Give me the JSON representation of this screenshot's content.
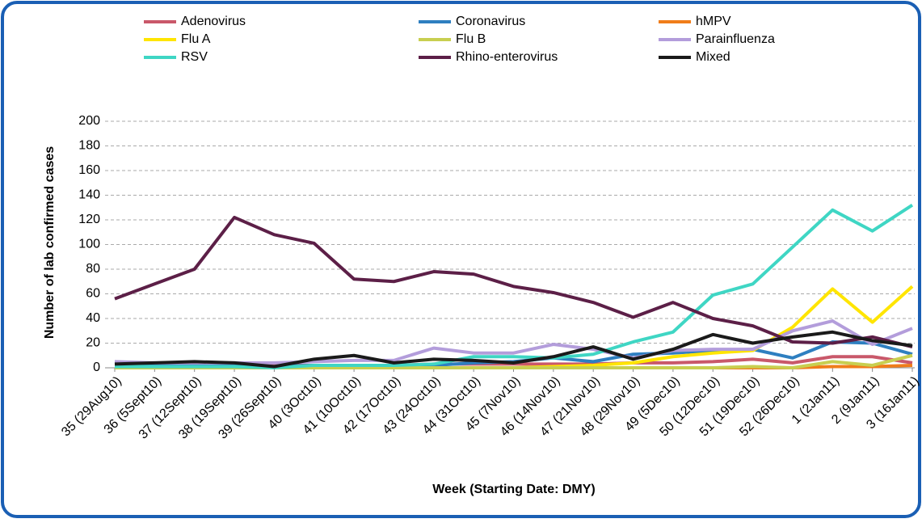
{
  "chart_data": {
    "type": "line",
    "y_label": "Number of lab confirmed cases",
    "x_label": "Week (Starting Date: DMY)",
    "categories": [
      "35 (29Aug10)",
      "36 (5Sept10)",
      "37 (12Sept10)",
      "38 (19Sept10)",
      "39 (26Sept10)",
      "40 (3Oct10)",
      "41 (10Oct10)",
      "42 (17Oct10)",
      "43 (24Oct10)",
      "44 (31Oct10)",
      "45 (7Nov10)",
      "46 (14Nov10)",
      "47 (21Nov10)",
      "48 (29Nov10)",
      "49 (5Dec10)",
      "50 (12Dec10)",
      "51 (19Dec10)",
      "52 (26Dec10)",
      "1 (2Jan11)",
      "2 (9Jan11)",
      "3 (16Jan11)"
    ],
    "ylim": [
      0,
      200
    ],
    "yticks": [
      0,
      20,
      40,
      60,
      80,
      100,
      120,
      140,
      160,
      180,
      200
    ],
    "grid": true,
    "legend": "top",
    "series": [
      {
        "name": "Adenovirus",
        "color": "#c9586a",
        "values": [
          3,
          3,
          3,
          3,
          2,
          2,
          2,
          2,
          3,
          3,
          3,
          3,
          3,
          4,
          4,
          5,
          7,
          4,
          9,
          9,
          4
        ]
      },
      {
        "name": "Coronavirus",
        "color": "#2e7fc0",
        "values": [
          2,
          2,
          2,
          2,
          1,
          2,
          2,
          2,
          2,
          4,
          5,
          8,
          5,
          11,
          12,
          14,
          15,
          8,
          21,
          20,
          11
        ]
      },
      {
        "name": "hMPV",
        "color": "#f07d1a",
        "values": [
          0,
          0,
          0,
          0,
          0,
          0,
          0,
          0,
          0,
          0,
          0,
          0,
          0,
          0,
          0,
          0,
          0,
          0,
          1,
          1,
          2
        ]
      },
      {
        "name": "Flu A",
        "color": "#ffe500",
        "values": [
          0,
          0,
          0,
          0,
          0,
          0,
          0,
          0,
          0,
          0,
          0,
          1,
          2,
          4,
          9,
          12,
          14,
          33,
          64,
          37,
          66
        ]
      },
      {
        "name": "Flu B",
        "color": "#c8cf50",
        "values": [
          0,
          0,
          0,
          0,
          0,
          0,
          0,
          0,
          0,
          0,
          0,
          0,
          0,
          0,
          0,
          0,
          1,
          0,
          5,
          2,
          10
        ]
      },
      {
        "name": "Parainfluenza",
        "color": "#b39ddb",
        "values": [
          5,
          4,
          4,
          4,
          4,
          5,
          6,
          6,
          16,
          12,
          12,
          19,
          15,
          8,
          14,
          15,
          15,
          30,
          38,
          19,
          32
        ]
      },
      {
        "name": "RSV",
        "color": "#3fd6c4",
        "values": [
          1,
          1,
          1,
          1,
          0,
          2,
          2,
          2,
          3,
          9,
          9,
          8,
          11,
          21,
          29,
          59,
          68,
          98,
          128,
          111,
          132
        ]
      },
      {
        "name": "Rhino-enterovirus",
        "color": "#5c1f47",
        "values": [
          56,
          68,
          80,
          122,
          108,
          101,
          72,
          70,
          78,
          76,
          66,
          61,
          53,
          41,
          53,
          40,
          34,
          21,
          20,
          25,
          17
        ]
      },
      {
        "name": "Mixed",
        "color": "#1a1a1a",
        "values": [
          3,
          4,
          5,
          4,
          1,
          7,
          10,
          4,
          7,
          6,
          4,
          9,
          17,
          7,
          15,
          27,
          20,
          25,
          29,
          22,
          18
        ]
      }
    ]
  }
}
